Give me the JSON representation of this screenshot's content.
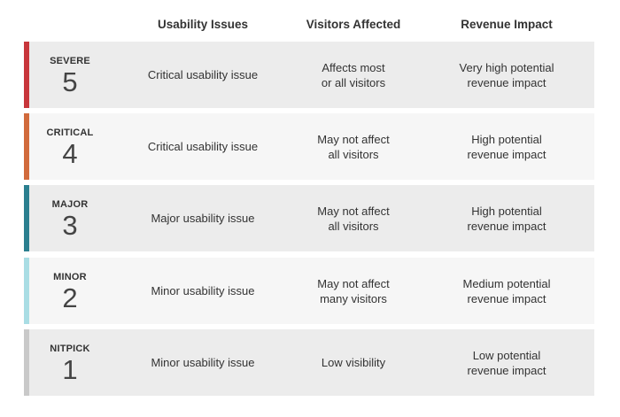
{
  "table": {
    "columns": [
      "Usability Issues",
      "Visitors Affected",
      "Revenue Impact"
    ],
    "rows": [
      {
        "level": "SEVERE",
        "score": 5,
        "color": "#c8363b",
        "background": "#ececec",
        "issue": [
          "Critical usability issue"
        ],
        "visitors": [
          "Affects most",
          "or all visitors"
        ],
        "revenue": [
          "Very high potential",
          "revenue impact"
        ]
      },
      {
        "level": "CRITICAL",
        "score": 4,
        "color": "#d16a3c",
        "background": "#f6f6f6",
        "issue": [
          "Critical usability issue"
        ],
        "visitors": [
          "May not affect",
          "all visitors"
        ],
        "revenue": [
          "High potential",
          "revenue impact"
        ]
      },
      {
        "level": "MAJOR",
        "score": 3,
        "color": "#2b7f8f",
        "background": "#ececec",
        "issue": [
          "Major usability issue"
        ],
        "visitors": [
          "May not affect",
          "all visitors"
        ],
        "revenue": [
          "High potential",
          "revenue impact"
        ]
      },
      {
        "level": "MINOR",
        "score": 2,
        "color": "#a9dde4",
        "background": "#f6f6f6",
        "issue": [
          "Minor usability issue"
        ],
        "visitors": [
          "May not affect",
          "many visitors"
        ],
        "revenue": [
          "Medium potential",
          "revenue impact"
        ]
      },
      {
        "level": "NITPICK",
        "score": 1,
        "color": "#c9c9c9",
        "background": "#ececec",
        "issue": [
          "Minor usability issue"
        ],
        "visitors": [
          "Low visibility"
        ],
        "revenue": [
          "Low potential",
          "revenue impact"
        ]
      }
    ]
  }
}
